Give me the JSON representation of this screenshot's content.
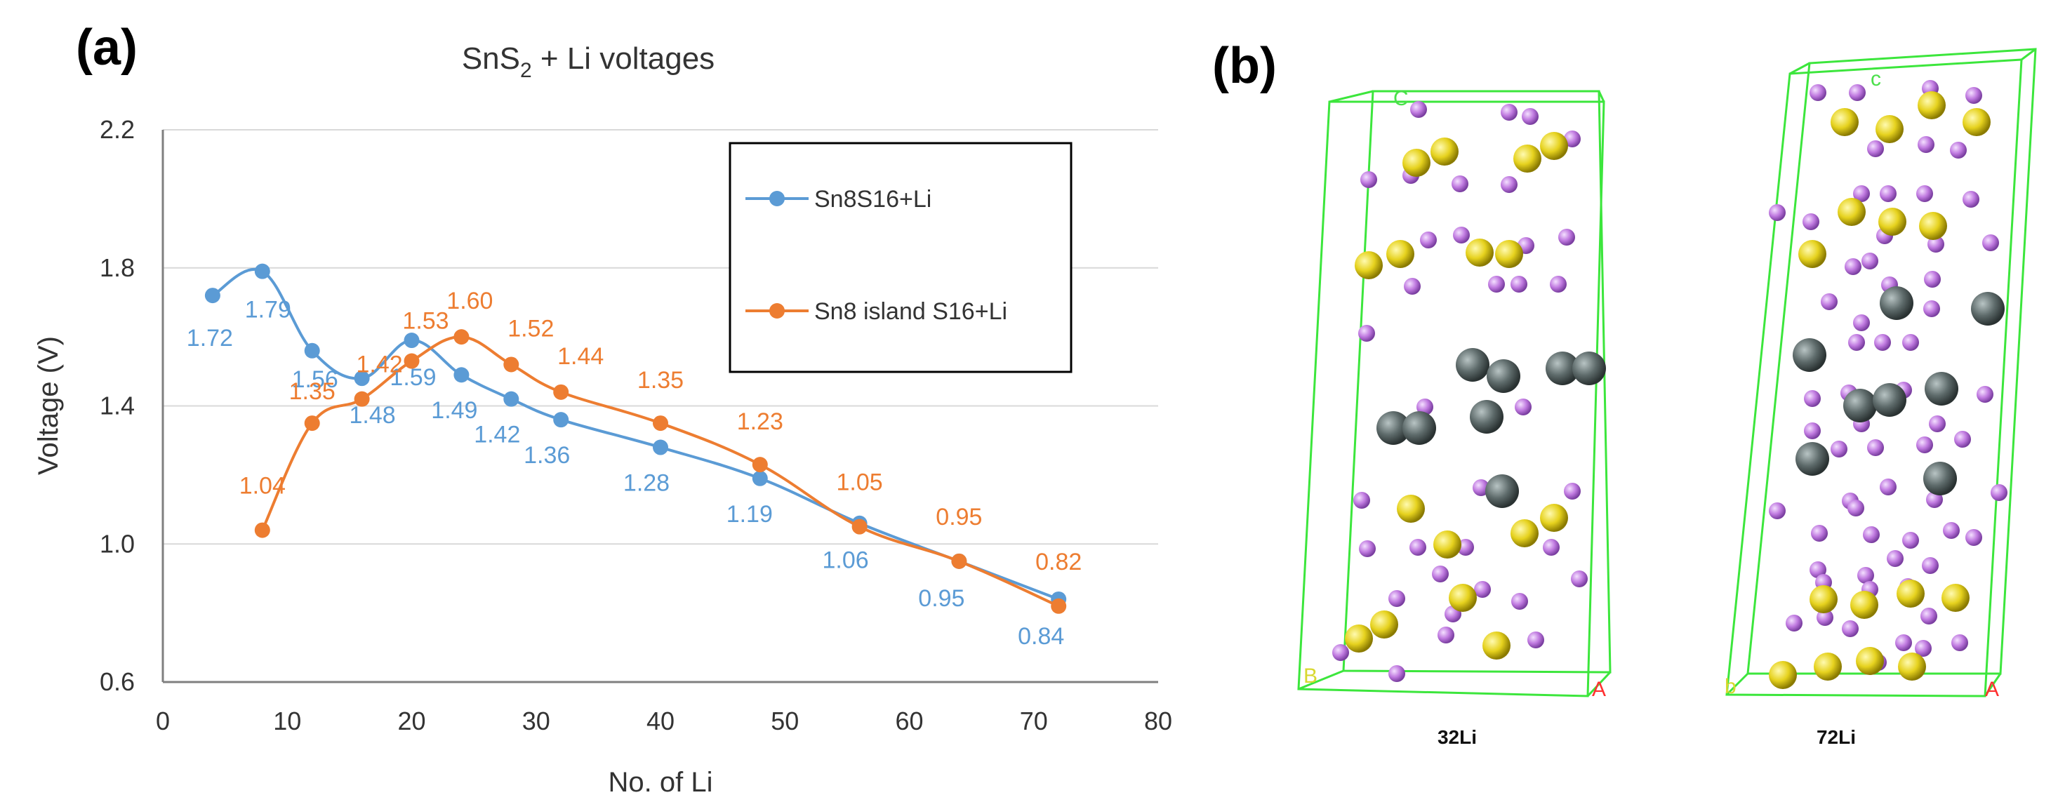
{
  "panel_a_label": "(a)",
  "panel_b_label": "(b)",
  "chart_data": {
    "type": "line",
    "title": "SnS2 + Li voltages",
    "title_main": "SnS",
    "title_sub": "2",
    "title_rest": " + Li voltages",
    "xlabel": "No. of Li",
    "ylabel": "Voltage (V)",
    "xlim": [
      0,
      80
    ],
    "ylim": [
      0.6,
      2.2
    ],
    "xticks": [
      0,
      10,
      20,
      30,
      40,
      50,
      60,
      70,
      80
    ],
    "yticks": [
      "0.6",
      "1.0",
      "1.4",
      "1.8",
      "2.2"
    ],
    "grid": "horizontal",
    "legend_position": "top-right",
    "series": [
      {
        "name": "Sn8S16+Li",
        "color": "#5B9BD5",
        "x": [
          4,
          8,
          12,
          16,
          20,
          24,
          28,
          32,
          40,
          48,
          56,
          64,
          72
        ],
        "y": [
          1.72,
          1.79,
          1.56,
          1.48,
          1.59,
          1.49,
          1.42,
          1.36,
          1.28,
          1.19,
          1.06,
          0.95,
          0.84
        ],
        "labels": [
          "1.72",
          "1.79",
          "1.56",
          "1.48",
          "1.59",
          "1.49",
          "1.42",
          "1.36",
          "1.28",
          "1.19",
          "1.06",
          "0.95",
          "0.84"
        ]
      },
      {
        "name": "Sn8 island S16+Li",
        "color": "#ED7D31",
        "x": [
          8,
          12,
          16,
          20,
          24,
          28,
          32,
          40,
          48,
          56,
          64,
          72
        ],
        "y": [
          1.04,
          1.35,
          1.42,
          1.53,
          1.6,
          1.52,
          1.44,
          1.35,
          1.23,
          1.05,
          0.95,
          0.82
        ],
        "labels": [
          "1.04",
          "1.35",
          "1.42",
          "1.53",
          "1.60",
          "1.52",
          "1.44",
          "1.35",
          "1.23",
          "1.05",
          "0.95",
          "0.82"
        ]
      }
    ]
  },
  "structures": [
    {
      "caption": "32Li",
      "axis_c": "C",
      "axis_b": "B",
      "axis_a": "A"
    },
    {
      "caption": "72Li",
      "axis_c": "c",
      "axis_b": "b",
      "axis_a": "A"
    }
  ],
  "colors": {
    "box": "#3CE63C",
    "sn": "#5E6B6B",
    "s": "#E6D21E",
    "li": "#C07AE0"
  }
}
